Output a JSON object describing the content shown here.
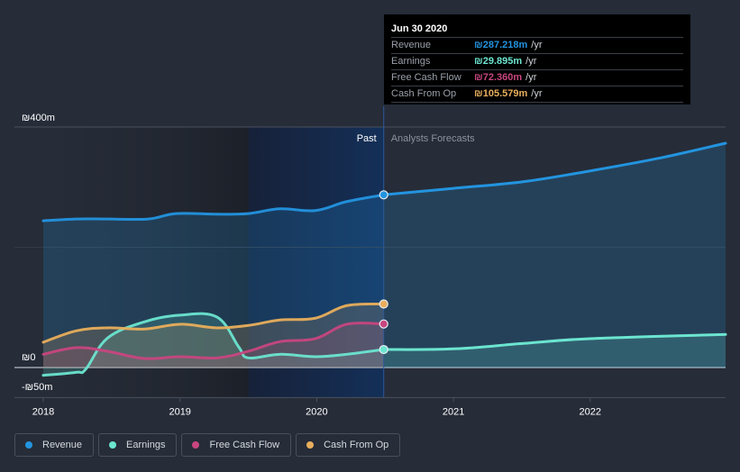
{
  "chart_data": {
    "type": "area",
    "title": "",
    "xlabel": "",
    "ylabel": "",
    "currency_symbol": "₪",
    "ylim": [
      -50,
      400
    ],
    "xlim": [
      2017.95,
      2022.99
    ],
    "y_ticks": [
      {
        "value": 400,
        "label": "₪400m"
      },
      {
        "value": 0,
        "label": "₪0"
      },
      {
        "value": -50,
        "label": "-₪50m"
      }
    ],
    "x_ticks": [
      {
        "value": 2018,
        "label": "2018"
      },
      {
        "value": 2019,
        "label": "2019"
      },
      {
        "value": 2020,
        "label": "2020"
      },
      {
        "value": 2021,
        "label": "2021"
      },
      {
        "value": 2022,
        "label": "2022"
      }
    ],
    "grid": true,
    "divider_date": 2020.49,
    "region_labels": {
      "past": "Past",
      "forecast": "Analysts Forecasts"
    },
    "series": [
      {
        "name": "Revenue",
        "color": "#2394df",
        "past": [
          [
            2018.0,
            244
          ],
          [
            2018.24,
            247
          ],
          [
            2018.47,
            247
          ],
          [
            2018.77,
            247
          ],
          [
            2018.97,
            256
          ],
          [
            2019.27,
            255
          ],
          [
            2019.5,
            256
          ],
          [
            2019.73,
            264
          ],
          [
            2019.99,
            261
          ],
          [
            2020.22,
            276
          ],
          [
            2020.49,
            287.2
          ]
        ],
        "forecast": [
          [
            2020.49,
            287.2
          ],
          [
            2021.0,
            298
          ],
          [
            2021.51,
            309
          ],
          [
            2022.0,
            327
          ],
          [
            2022.5,
            348
          ],
          [
            2022.99,
            373
          ]
        ]
      },
      {
        "name": "Earnings",
        "color": "#6ce5d0",
        "past": [
          [
            2018.0,
            -13
          ],
          [
            2018.24,
            -8
          ],
          [
            2018.31,
            -3
          ],
          [
            2018.47,
            49
          ],
          [
            2018.74,
            76
          ],
          [
            2019.0,
            87
          ],
          [
            2019.27,
            84
          ],
          [
            2019.43,
            34
          ],
          [
            2019.5,
            16
          ],
          [
            2019.73,
            22
          ],
          [
            2019.99,
            18
          ],
          [
            2020.22,
            22
          ],
          [
            2020.49,
            29.9
          ]
        ],
        "forecast": [
          [
            2020.49,
            29.9
          ],
          [
            2021.0,
            31
          ],
          [
            2021.51,
            40
          ],
          [
            2022.0,
            48
          ],
          [
            2022.99,
            55
          ]
        ]
      },
      {
        "name": "Free Cash Flow",
        "color": "#c8467f",
        "past": [
          [
            2018.0,
            22
          ],
          [
            2018.24,
            33
          ],
          [
            2018.47,
            27
          ],
          [
            2018.74,
            15
          ],
          [
            2019.0,
            18
          ],
          [
            2019.27,
            16
          ],
          [
            2019.5,
            27
          ],
          [
            2019.73,
            43
          ],
          [
            2019.99,
            48
          ],
          [
            2020.22,
            72
          ],
          [
            2020.49,
            72.4
          ]
        ],
        "forecast": []
      },
      {
        "name": "Cash From Op",
        "color": "#e8ae5c",
        "past": [
          [
            2018.0,
            42
          ],
          [
            2018.24,
            61
          ],
          [
            2018.47,
            66
          ],
          [
            2018.74,
            64
          ],
          [
            2019.0,
            72
          ],
          [
            2019.27,
            66
          ],
          [
            2019.5,
            70
          ],
          [
            2019.73,
            79
          ],
          [
            2019.99,
            82
          ],
          [
            2020.22,
            103
          ],
          [
            2020.49,
            105.6
          ]
        ],
        "forecast": []
      }
    ]
  },
  "tooltip": {
    "date": "Jun 30 2020",
    "rows": [
      {
        "label": "Revenue",
        "value": "₪287.218m",
        "unit": "/yr",
        "color": "#2394df"
      },
      {
        "label": "Earnings",
        "value": "₪29.895m",
        "unit": "/yr",
        "color": "#6ce5d0"
      },
      {
        "label": "Free Cash Flow",
        "value": "₪72.360m",
        "unit": "/yr",
        "color": "#c8467f"
      },
      {
        "label": "Cash From Op",
        "value": "₪105.579m",
        "unit": "/yr",
        "color": "#e8ae5c"
      }
    ]
  },
  "legend": [
    {
      "label": "Revenue",
      "color": "#2394df"
    },
    {
      "label": "Earnings",
      "color": "#6ce5d0"
    },
    {
      "label": "Free Cash Flow",
      "color": "#c8467f"
    },
    {
      "label": "Cash From Op",
      "color": "#e8ae5c"
    }
  ]
}
